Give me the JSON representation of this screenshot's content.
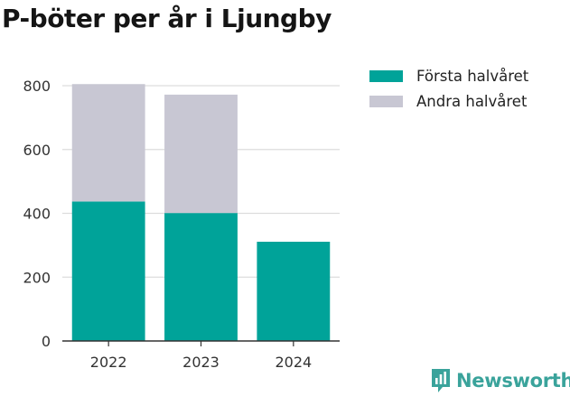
{
  "title": "P-böter per år i Ljungby",
  "chart_data": {
    "type": "bar",
    "stacked": true,
    "categories": [
      "2022",
      "2023",
      "2024"
    ],
    "series": [
      {
        "name": "Första halvåret",
        "color": "#00a399",
        "values": [
          437,
          401,
          311
        ]
      },
      {
        "name": "Andra halvåret",
        "color": "#c8c7d3",
        "values": [
          368,
          371,
          0
        ]
      }
    ],
    "ylim": [
      0,
      800
    ],
    "yticks": [
      0,
      200,
      400,
      600,
      800
    ],
    "grid": true,
    "legend_position": "top-right"
  },
  "branding": {
    "logo_text": "Newsworthy",
    "logo_icon": "newsworthy-logo-icon",
    "color": "#3aa39b"
  }
}
